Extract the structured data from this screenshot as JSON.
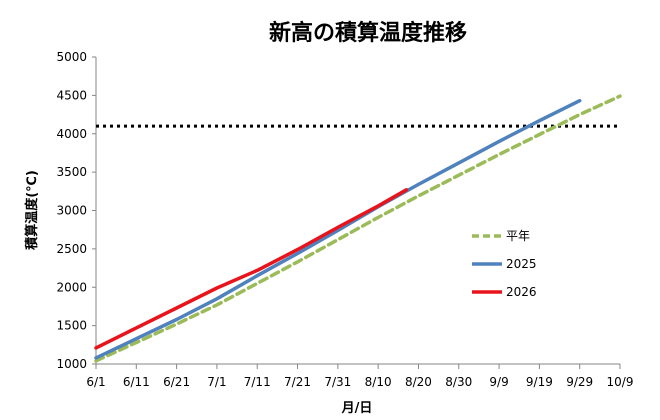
{
  "chart_data": {
    "type": "line",
    "title": "新高の積算温度推移",
    "xlabel": "月/日",
    "ylabel": "積算温度(℃)",
    "ylim": [
      1000,
      5000
    ],
    "yticks": [
      1000,
      1500,
      2000,
      2500,
      3000,
      3500,
      4000,
      4500,
      5000
    ],
    "xlim_days": [
      0,
      130
    ],
    "xticks": [
      {
        "label": "6/1",
        "day": 0
      },
      {
        "label": "6/11",
        "day": 10
      },
      {
        "label": "6/21",
        "day": 20
      },
      {
        "label": "7/1",
        "day": 30
      },
      {
        "label": "7/11",
        "day": 40
      },
      {
        "label": "7/21",
        "day": 50
      },
      {
        "label": "7/31",
        "day": 60
      },
      {
        "label": "8/10",
        "day": 70
      },
      {
        "label": "8/20",
        "day": 80
      },
      {
        "label": "8/30",
        "day": 90
      },
      {
        "label": "9/9",
        "day": 100
      },
      {
        "label": "9/19",
        "day": 110
      },
      {
        "label": "9/29",
        "day": 120
      },
      {
        "label": "10/9",
        "day": 130
      }
    ],
    "grid": false,
    "legend": "right",
    "reference_line": {
      "y": 4100,
      "style": "dotted",
      "color": "#000000"
    },
    "series": [
      {
        "name": "平年",
        "color": "#9bbb59",
        "dash": true,
        "points": [
          [
            0,
            1040
          ],
          [
            10,
            1280
          ],
          [
            20,
            1520
          ],
          [
            30,
            1770
          ],
          [
            40,
            2050
          ],
          [
            50,
            2330
          ],
          [
            60,
            2620
          ],
          [
            70,
            2910
          ],
          [
            80,
            3190
          ],
          [
            90,
            3460
          ],
          [
            100,
            3730
          ],
          [
            110,
            3990
          ],
          [
            120,
            4250
          ],
          [
            130,
            4490
          ]
        ]
      },
      {
        "name": "2025",
        "color": "#4f81bd",
        "dash": false,
        "points": [
          [
            0,
            1080
          ],
          [
            10,
            1330
          ],
          [
            20,
            1580
          ],
          [
            30,
            1850
          ],
          [
            40,
            2150
          ],
          [
            50,
            2440
          ],
          [
            60,
            2740
          ],
          [
            70,
            3050
          ],
          [
            80,
            3340
          ],
          [
            90,
            3620
          ],
          [
            100,
            3900
          ],
          [
            110,
            4170
          ],
          [
            120,
            4430
          ]
        ]
      },
      {
        "name": "2026",
        "color": "#e8141c",
        "dash": false,
        "points": [
          [
            0,
            1210
          ],
          [
            10,
            1470
          ],
          [
            20,
            1730
          ],
          [
            30,
            1990
          ],
          [
            40,
            2220
          ],
          [
            50,
            2490
          ],
          [
            60,
            2780
          ],
          [
            70,
            3060
          ],
          [
            77,
            3270
          ]
        ]
      }
    ]
  }
}
